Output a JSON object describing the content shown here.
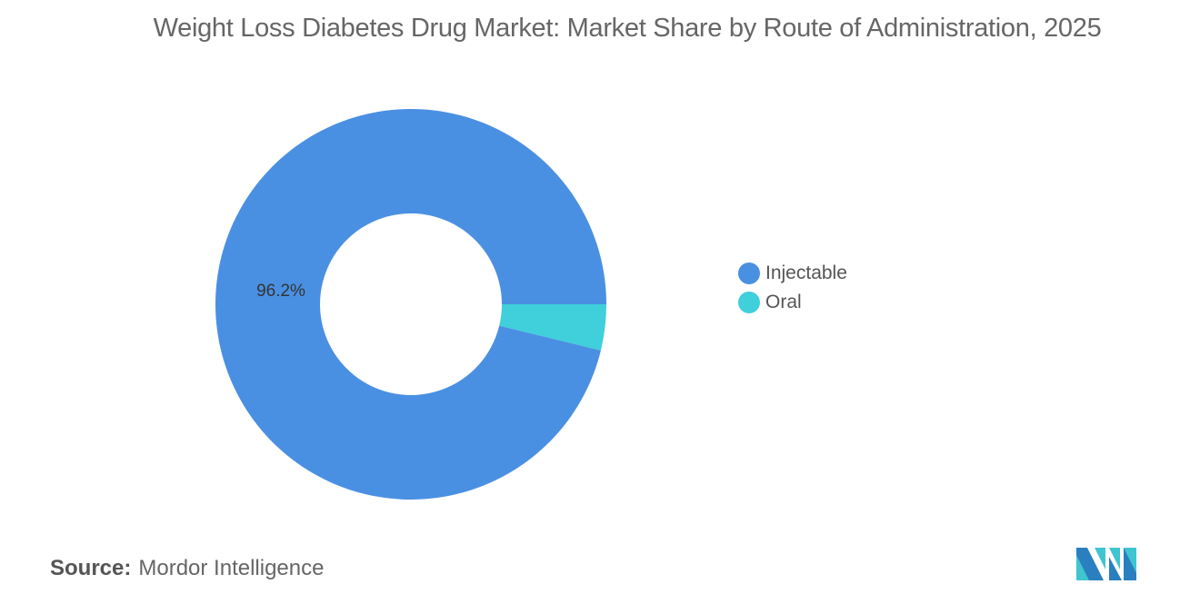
{
  "chart_data": {
    "type": "pie",
    "donut": true,
    "title": "Weight Loss Diabetes Drug Market: Market Share by Route of Administration, 2025",
    "categories": [
      "Injectable",
      "Oral"
    ],
    "values": [
      96.2,
      3.8
    ],
    "colors": [
      "#4A90E2",
      "#3FD0DB"
    ],
    "data_labels": [
      "96.2%",
      ""
    ],
    "legend_position": "right"
  },
  "source": {
    "label": "Source:",
    "value": "Mordor Intelligence"
  },
  "logo": {
    "text": "Mordor Intelligence",
    "colors": [
      "#2A7FC0",
      "#3FC5CF"
    ]
  }
}
